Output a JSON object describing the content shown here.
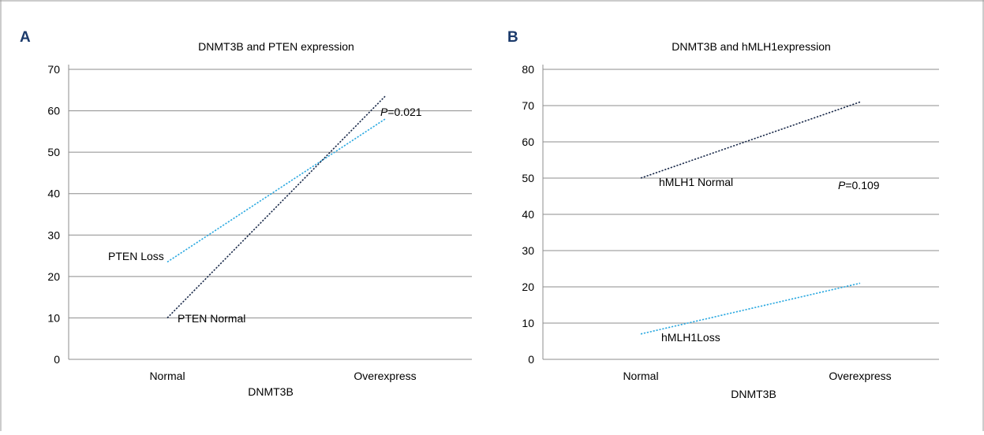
{
  "colors": {
    "grid": "#8c8c8c",
    "axis": "#8c8c8c",
    "navy": "#1a2a4a",
    "cyan": "#29a8e0",
    "panel_letter": "#1b3a6b",
    "frame": "#999999"
  },
  "chart_data": [
    {
      "panel": "A",
      "type": "line",
      "title": "DNMT3B and PTEN expression",
      "xlabel": "DNMT3B",
      "ylabel": "",
      "categories": [
        "Normal",
        "Overexpress"
      ],
      "ylim": [
        0,
        70
      ],
      "yticks": [
        "0",
        "10",
        "20",
        "30",
        "40",
        "50",
        "60",
        "70"
      ],
      "grid": true,
      "series": [
        {
          "name": "PTEN Loss",
          "values": [
            23.5,
            58
          ],
          "color": "cyan",
          "style": "dotted"
        },
        {
          "name": "PTEN Normal",
          "values": [
            10,
            63.5
          ],
          "color": "navy",
          "style": "dotted"
        }
      ],
      "annotation": {
        "prefix": "P",
        "text": "=0.021"
      }
    },
    {
      "panel": "B",
      "type": "line",
      "title": "DNMT3B and hMLH1expression",
      "xlabel": "DNMT3B",
      "ylabel": "",
      "categories": [
        "Normal",
        "Overexpress"
      ],
      "ylim": [
        0,
        80
      ],
      "yticks": [
        "0",
        "10",
        "20",
        "30",
        "40",
        "50",
        "60",
        "70",
        "80"
      ],
      "grid": true,
      "series": [
        {
          "name": "hMLH1 Normal",
          "values": [
            50,
            71
          ],
          "color": "navy",
          "style": "dotted"
        },
        {
          "name": "hMLH1Loss",
          "values": [
            7,
            21
          ],
          "color": "cyan",
          "style": "dotted"
        }
      ],
      "annotation": {
        "prefix": "P",
        "text": "=0.109"
      }
    }
  ]
}
